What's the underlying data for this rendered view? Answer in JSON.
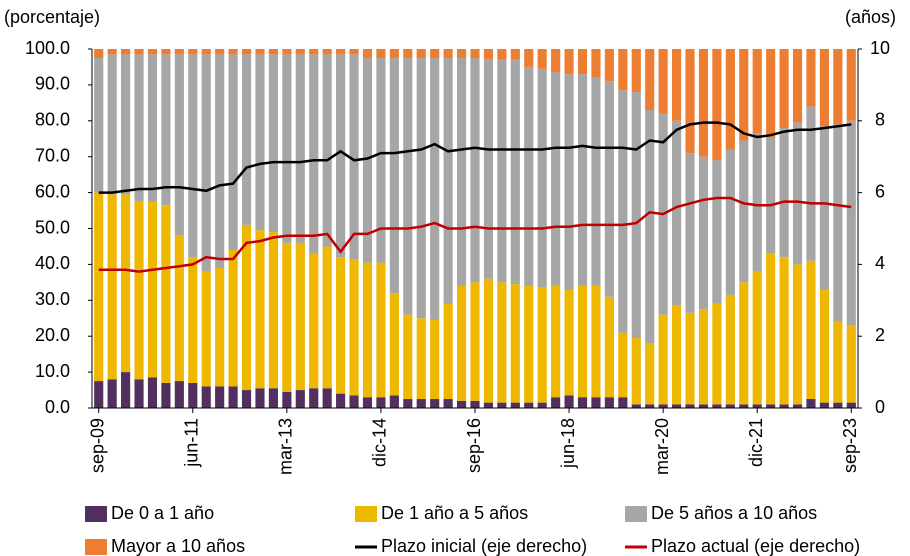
{
  "chart_data": {
    "type": "bar",
    "stacked": true,
    "y_label": "(porcentaje)",
    "y2_label": "(años)",
    "categories": [
      "sep-09",
      null,
      null,
      null,
      null,
      null,
      null,
      "jun-11",
      null,
      null,
      null,
      null,
      null,
      null,
      "mar-13",
      null,
      null,
      null,
      null,
      null,
      null,
      "dic-14",
      null,
      null,
      null,
      null,
      null,
      null,
      "sep-16",
      null,
      null,
      null,
      null,
      null,
      null,
      "jun-18",
      null,
      null,
      null,
      null,
      null,
      null,
      "mar-20",
      null,
      null,
      null,
      null,
      null,
      null,
      "dic-21",
      null,
      null,
      null,
      null,
      null,
      null,
      "sep-23"
    ],
    "ylim": [
      0,
      100
    ],
    "yticks": [
      {
        "value": 0,
        "label": "0.0"
      },
      {
        "value": 10,
        "label": "10.0"
      },
      {
        "value": 20,
        "label": "20.0"
      },
      {
        "value": 30,
        "label": "30.0"
      },
      {
        "value": 40,
        "label": "40.0"
      },
      {
        "value": 50,
        "label": "50.0"
      },
      {
        "value": 60,
        "label": "60.0"
      },
      {
        "value": 70,
        "label": "70.0"
      },
      {
        "value": 80,
        "label": "80.0"
      },
      {
        "value": 90,
        "label": "90.0"
      },
      {
        "value": 100,
        "label": "100.0"
      }
    ],
    "y2lim": [
      0,
      10
    ],
    "y2ticks": [
      0,
      2,
      4,
      6,
      8,
      10
    ],
    "series": [
      {
        "name": "De 0 a 1 año",
        "color": "#51305f",
        "values": [
          7.5,
          8,
          10,
          8,
          8.5,
          7,
          7.5,
          7,
          6,
          6,
          6,
          5,
          5.5,
          5.5,
          4.5,
          5,
          5.5,
          5.5,
          4,
          3.5,
          3,
          3,
          3.5,
          2.5,
          2.5,
          2.5,
          2.5,
          2,
          2,
          1.5,
          1.5,
          1.5,
          1.5,
          1.5,
          3,
          3.5,
          3,
          3,
          3,
          3,
          1,
          1,
          1,
          1,
          1,
          1,
          1,
          1,
          1,
          1,
          1,
          1,
          1,
          2.5,
          1.5,
          1.5,
          1.5
        ]
      },
      {
        "name": "De 1 año a 5 años",
        "color": "#eeb700",
        "values": [
          52.5,
          51.5,
          49.5,
          49.5,
          49,
          49.5,
          40.5,
          35,
          32,
          33,
          38,
          46,
          44,
          43.5,
          41.5,
          41,
          37.5,
          39.5,
          38,
          38,
          37.5,
          37.5,
          28.5,
          23.5,
          22.5,
          22,
          26.5,
          32,
          33,
          34.5,
          33.5,
          33,
          32.5,
          32,
          31,
          29.5,
          31,
          31,
          28,
          18,
          18.5,
          17,
          25,
          27.5,
          25.5,
          26.5,
          28,
          30.5,
          34,
          37,
          42,
          41,
          39,
          38.5,
          31.5,
          22.5,
          21.5
        ]
      },
      {
        "name": "De 5 años a 10 años",
        "color": "#a6a6a6",
        "values": [
          37.5,
          39,
          39,
          41,
          41,
          42,
          50.5,
          56.5,
          60.5,
          59.5,
          54.5,
          47.5,
          49,
          49.5,
          52.5,
          52.5,
          55.5,
          53.5,
          56.5,
          57,
          57,
          57,
          65.5,
          71.5,
          72.5,
          73,
          68.5,
          63.5,
          62.5,
          61,
          62,
          62.5,
          61,
          61,
          59.5,
          60,
          59,
          58,
          60,
          67.5,
          68.5,
          65,
          56,
          51.5,
          44.5,
          42.5,
          40,
          40.5,
          39.5,
          38.5,
          32.5,
          36,
          39.5,
          43,
          45.5,
          55,
          57
        ]
      },
      {
        "name": "Mayor a 10 años",
        "color": "#ed7d31",
        "values": [
          2.5,
          1.5,
          1.5,
          1.5,
          1.5,
          1.5,
          1.5,
          1.5,
          1.5,
          1.5,
          1.5,
          1.5,
          1.5,
          1.5,
          1.5,
          1.5,
          1.5,
          1.5,
          1.5,
          1.5,
          2.5,
          2.5,
          2.5,
          2.5,
          2.5,
          2.5,
          2.5,
          2.5,
          2.5,
          3,
          3,
          3,
          5,
          5.5,
          6.5,
          7,
          7,
          8,
          9,
          11.5,
          12,
          17,
          18,
          20,
          29,
          30,
          31,
          28,
          25.5,
          23.5,
          24.5,
          22,
          20.5,
          16,
          21.5,
          21,
          20
        ]
      },
      {
        "name": "Plazo inicial (eje derecho)",
        "type": "line",
        "axis": "y2",
        "color": "#000000",
        "values": [
          6.0,
          6.0,
          6.05,
          6.1,
          6.1,
          6.15,
          6.15,
          6.1,
          6.05,
          6.2,
          6.25,
          6.7,
          6.8,
          6.85,
          6.85,
          6.85,
          6.9,
          6.9,
          7.15,
          6.9,
          6.95,
          7.1,
          7.1,
          7.15,
          7.2,
          7.35,
          7.15,
          7.2,
          7.25,
          7.2,
          7.2,
          7.2,
          7.2,
          7.2,
          7.25,
          7.25,
          7.3,
          7.25,
          7.25,
          7.25,
          7.2,
          7.45,
          7.4,
          7.75,
          7.9,
          7.95,
          7.95,
          7.9,
          7.65,
          7.55,
          7.6,
          7.7,
          7.75,
          7.75,
          7.8,
          7.85,
          7.9
        ]
      },
      {
        "name": "Plazo actual (eje derecho)",
        "type": "line",
        "axis": "y2",
        "color": "#c00000",
        "values": [
          3.85,
          3.85,
          3.85,
          3.8,
          3.85,
          3.9,
          3.95,
          4.0,
          4.2,
          4.15,
          4.15,
          4.6,
          4.65,
          4.75,
          4.8,
          4.8,
          4.8,
          4.85,
          4.35,
          4.85,
          4.85,
          5.0,
          5.0,
          5.0,
          5.05,
          5.15,
          5.0,
          5.0,
          5.05,
          5.0,
          5.0,
          5.0,
          5.0,
          5.0,
          5.05,
          5.05,
          5.1,
          5.1,
          5.1,
          5.1,
          5.15,
          5.45,
          5.4,
          5.6,
          5.7,
          5.8,
          5.85,
          5.85,
          5.7,
          5.65,
          5.65,
          5.75,
          5.75,
          5.7,
          5.7,
          5.65,
          5.6
        ]
      }
    ]
  }
}
